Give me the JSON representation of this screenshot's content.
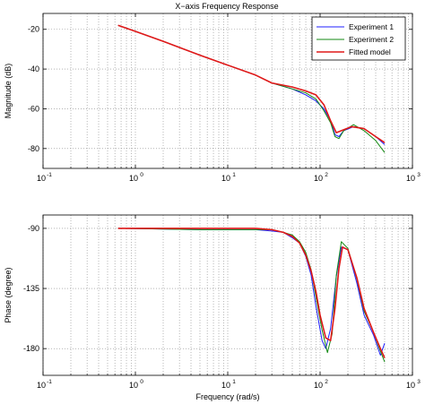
{
  "title": "X−axis Frequency Response",
  "chart_data": [
    {
      "type": "line",
      "title": "X−axis Frequency Response",
      "xlabel": "",
      "ylabel": "Magnitude (dB)",
      "xscale": "log",
      "xlim": [
        0.1,
        1000
      ],
      "ylim": [
        -90,
        -12
      ],
      "yticks": [
        -80,
        -60,
        -40,
        -20
      ],
      "xticks": [
        0.1,
        1,
        10,
        100,
        1000
      ],
      "xtick_labels": [
        "10",
        "10",
        "10",
        "10",
        "10"
      ],
      "xtick_exponents": [
        "-1",
        "0",
        "1",
        "2",
        "3"
      ],
      "grid": true,
      "legend": {
        "placement": "top-right",
        "entries": [
          "Experiment 1",
          "Experiment 2",
          "Fitted model"
        ]
      },
      "series": [
        {
          "name": "Experiment 1",
          "color": "#1f1fff",
          "points": [
            [
              0.65,
              -18
            ],
            [
              1,
              -21
            ],
            [
              2,
              -26
            ],
            [
              5,
              -33
            ],
            [
              10,
              -38
            ],
            [
              20,
              -43
            ],
            [
              30,
              -47
            ],
            [
              50,
              -50
            ],
            [
              70,
              -53
            ],
            [
              90,
              -56
            ],
            [
              110,
              -60
            ],
            [
              130,
              -66
            ],
            [
              145,
              -73
            ],
            [
              160,
              -74
            ],
            [
              180,
              -71
            ],
            [
              230,
              -69
            ],
            [
              300,
              -70
            ],
            [
              400,
              -74
            ],
            [
              500,
              -78
            ]
          ]
        },
        {
          "name": "Experiment 2",
          "color": "#138a13",
          "points": [
            [
              0.65,
              -18
            ],
            [
              1,
              -21
            ],
            [
              2,
              -26
            ],
            [
              5,
              -33
            ],
            [
              10,
              -38
            ],
            [
              20,
              -43
            ],
            [
              30,
              -47
            ],
            [
              50,
              -50
            ],
            [
              70,
              -52
            ],
            [
              90,
              -55
            ],
            [
              110,
              -61
            ],
            [
              130,
              -67
            ],
            [
              145,
              -74
            ],
            [
              160,
              -75
            ],
            [
              180,
              -71
            ],
            [
              230,
              -68
            ],
            [
              300,
              -71
            ],
            [
              400,
              -76
            ],
            [
              500,
              -82
            ]
          ]
        },
        {
          "name": "Fitted model",
          "color": "#e01818",
          "points": [
            [
              0.65,
              -18
            ],
            [
              1,
              -21
            ],
            [
              2,
              -26
            ],
            [
              5,
              -33
            ],
            [
              10,
              -38
            ],
            [
              20,
              -43
            ],
            [
              30,
              -47
            ],
            [
              50,
              -49
            ],
            [
              70,
              -51
            ],
            [
              90,
              -53
            ],
            [
              110,
              -58
            ],
            [
              130,
              -66
            ],
            [
              150,
              -72
            ],
            [
              170,
              -71
            ],
            [
              220,
              -69
            ],
            [
              300,
              -70
            ],
            [
              400,
              -74
            ],
            [
              500,
              -77
            ]
          ]
        }
      ]
    },
    {
      "type": "line",
      "title": "",
      "xlabel": "Frequency (rad/s)",
      "ylabel": "Phase (degree)",
      "xscale": "log",
      "xlim": [
        0.1,
        1000
      ],
      "ylim": [
        -200,
        -80
      ],
      "yticks": [
        -180,
        -135,
        -90
      ],
      "xticks": [
        0.1,
        1,
        10,
        100,
        1000
      ],
      "xtick_labels": [
        "10",
        "10",
        "10",
        "10",
        "10"
      ],
      "xtick_exponents": [
        "-1",
        "0",
        "1",
        "2",
        "3"
      ],
      "grid": true,
      "series": [
        {
          "name": "Experiment 1",
          "color": "#1f1fff",
          "points": [
            [
              0.65,
              -90
            ],
            [
              5,
              -91
            ],
            [
              20,
              -91
            ],
            [
              30,
              -92
            ],
            [
              40,
              -93
            ],
            [
              50,
              -97
            ],
            [
              60,
              -101
            ],
            [
              70,
              -111
            ],
            [
              80,
              -125
            ],
            [
              90,
              -148
            ],
            [
              105,
              -174
            ],
            [
              115,
              -180
            ],
            [
              130,
              -165
            ],
            [
              150,
              -126
            ],
            [
              170,
              -104
            ],
            [
              200,
              -106
            ],
            [
              250,
              -131
            ],
            [
              300,
              -155
            ],
            [
              380,
              -170
            ],
            [
              450,
              -185
            ],
            [
              500,
              -176
            ]
          ]
        },
        {
          "name": "Experiment 2",
          "color": "#138a13",
          "points": [
            [
              0.65,
              -90
            ],
            [
              5,
              -91
            ],
            [
              20,
              -91
            ],
            [
              30,
              -91
            ],
            [
              40,
              -93
            ],
            [
              50,
              -95
            ],
            [
              60,
              -100
            ],
            [
              70,
              -108
            ],
            [
              80,
              -121
            ],
            [
              90,
              -141
            ],
            [
              105,
              -166
            ],
            [
              120,
              -183
            ],
            [
              135,
              -169
            ],
            [
              150,
              -125
            ],
            [
              170,
              -100
            ],
            [
              200,
              -105
            ],
            [
              250,
              -128
            ],
            [
              300,
              -152
            ],
            [
              380,
              -168
            ],
            [
              450,
              -182
            ],
            [
              500,
              -190
            ]
          ]
        },
        {
          "name": "Fitted model",
          "color": "#e01818",
          "points": [
            [
              0.65,
              -90
            ],
            [
              5,
              -90
            ],
            [
              20,
              -90
            ],
            [
              30,
              -91
            ],
            [
              40,
              -93
            ],
            [
              50,
              -96
            ],
            [
              60,
              -101
            ],
            [
              70,
              -110
            ],
            [
              80,
              -122
            ],
            [
              90,
              -137
            ],
            [
              100,
              -155
            ],
            [
              115,
              -172
            ],
            [
              130,
              -174
            ],
            [
              145,
              -150
            ],
            [
              160,
              -120
            ],
            [
              175,
              -104
            ],
            [
              200,
              -106
            ],
            [
              250,
              -127
            ],
            [
              300,
              -150
            ],
            [
              380,
              -168
            ],
            [
              450,
              -180
            ],
            [
              500,
              -187
            ]
          ]
        }
      ]
    }
  ]
}
